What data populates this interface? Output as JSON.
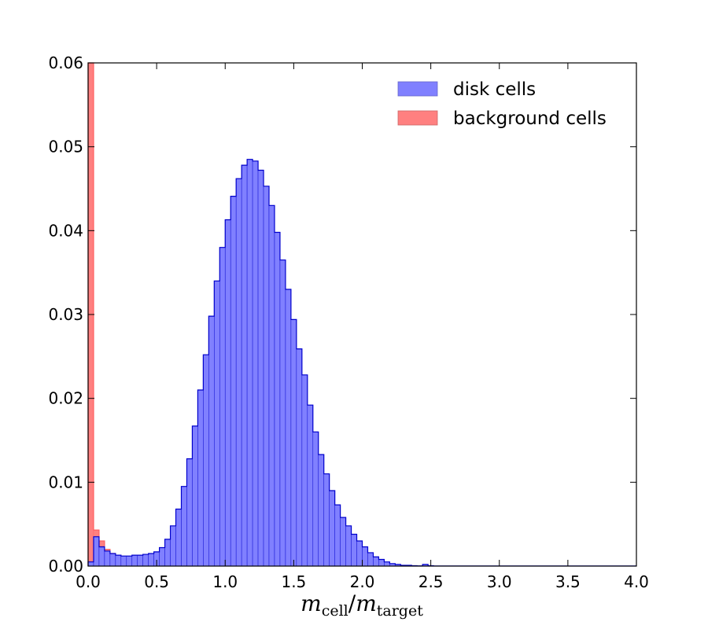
{
  "chart_data": {
    "type": "histogram",
    "title": "",
    "xlabel": {
      "base": "m",
      "sub": "cell",
      "slash": "/",
      "base2": "m",
      "sub2": "target"
    },
    "ylabel": "",
    "xlim": [
      0.0,
      4.0
    ],
    "ylim": [
      0.0,
      0.06
    ],
    "xticks": [
      "0.0",
      "0.5",
      "1.0",
      "1.5",
      "2.0",
      "2.5",
      "3.0",
      "3.5",
      "4.0"
    ],
    "yticks": [
      "0.00",
      "0.01",
      "0.02",
      "0.03",
      "0.04",
      "0.05",
      "0.06"
    ],
    "bin_width": 0.04,
    "grid": false,
    "legend_position": "top-right",
    "series": [
      {
        "name": "disk cells",
        "fill_color": "#8080ff",
        "edge_color": "#0000cc",
        "bin_start": 0.0,
        "values": [
          0.0005,
          0.0035,
          0.0023,
          0.0018,
          0.0015,
          0.0013,
          0.0012,
          0.0012,
          0.0013,
          0.0013,
          0.0014,
          0.0015,
          0.0017,
          0.0022,
          0.0032,
          0.0048,
          0.0068,
          0.0095,
          0.0128,
          0.0167,
          0.021,
          0.0252,
          0.0298,
          0.034,
          0.038,
          0.0413,
          0.0441,
          0.0462,
          0.0478,
          0.0485,
          0.0483,
          0.0472,
          0.0453,
          0.043,
          0.0398,
          0.0365,
          0.033,
          0.0294,
          0.0259,
          0.0228,
          0.0192,
          0.016,
          0.0133,
          0.011,
          0.009,
          0.0073,
          0.0058,
          0.0048,
          0.0038,
          0.003,
          0.0023,
          0.0016,
          0.0011,
          0.0008,
          0.0005,
          0.0003,
          0.0002,
          0.0001,
          0.0001,
          5e-05,
          3e-05,
          0.0002,
          5e-05,
          2e-05,
          1e-05,
          1e-05,
          1e-05,
          1e-05,
          1e-05,
          1e-05,
          1e-05,
          1e-05,
          1e-05,
          1e-05,
          1e-05,
          1e-05,
          1e-05,
          1e-05,
          1e-05,
          1e-05,
          1e-05,
          1e-05,
          1e-05,
          1e-05,
          1e-05,
          1e-05,
          1e-05,
          1e-05,
          1e-05,
          1e-05,
          1e-05,
          1e-05,
          1e-05,
          1e-05,
          1e-05,
          1e-05,
          1e-05,
          1e-05,
          1e-05,
          1e-05
        ]
      },
      {
        "name": "background cells",
        "fill_color": "#ff8080",
        "edge_color": "#ff6060",
        "bin_start": 0.0,
        "values": [
          0.06,
          0.0043,
          0.003,
          0.002,
          0.0015,
          0.0013,
          0.0011,
          0.0009,
          0.0008,
          0.0007,
          0.0006,
          0.0005,
          0.0004,
          0.0004,
          0.0003,
          0.0003,
          0.0003,
          0.0003,
          0.0002,
          0.0002,
          0.0002,
          0.0002,
          0.0002,
          0.0002,
          0.0002,
          0.0002,
          0.0002,
          0.0002,
          0.0002,
          0.0002,
          0.0001,
          0.0001,
          0.0001,
          0.0001,
          0.0001,
          0.0001,
          0.0001,
          0.0001,
          0.0001,
          0.0001,
          0.0001,
          0.0001,
          0.0001,
          0.0001,
          0.0001,
          0.0001,
          0.0001,
          0.0001,
          0.0001,
          0.0001
        ]
      }
    ]
  }
}
